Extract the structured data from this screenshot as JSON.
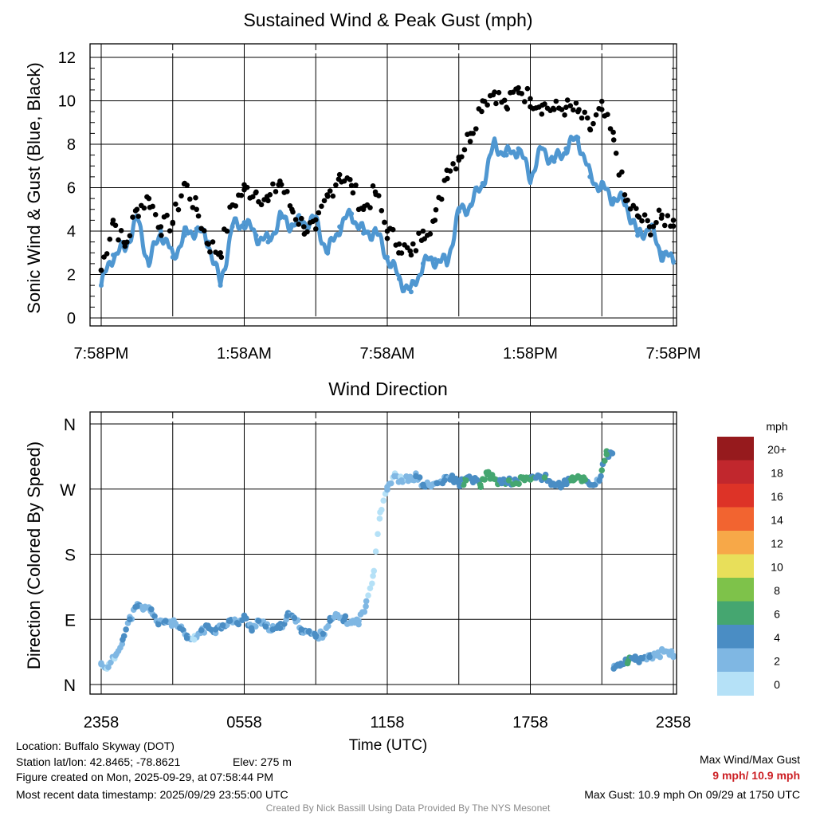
{
  "chart_data": [
    {
      "type": "scatter",
      "title": "Sustained Wind & Peak Gust (mph)",
      "ylabel": "Sonic Wind & Gust (Blue, Black)",
      "xlabel": "",
      "ylim": [
        0,
        12
      ],
      "yticks": [
        0,
        2,
        4,
        6,
        8,
        10,
        12
      ],
      "xticks": [
        "7:58PM",
        "1:58AM",
        "7:58AM",
        "1:58PM",
        "7:58PM"
      ],
      "x_unit": "hours since 7:58PM local",
      "xlim": [
        0,
        24
      ],
      "series": [
        {
          "name": "Sustained Wind",
          "color": "#4f97d1",
          "x": [
            0,
            0.5,
            1,
            1.5,
            2,
            2.5,
            3,
            3.5,
            4,
            4.5,
            5,
            5.5,
            6,
            6.5,
            7,
            7.5,
            8,
            8.5,
            9,
            9.5,
            10,
            10.5,
            11,
            11.5,
            12,
            12.5,
            13,
            13.5,
            14,
            14.5,
            15,
            15.5,
            16,
            16.5,
            17,
            17.5,
            18,
            18.5,
            19,
            19.5,
            20,
            20.5,
            21,
            21.5,
            22,
            22.5,
            23,
            23.5,
            24
          ],
          "values": [
            1.5,
            2.9,
            3.2,
            4.6,
            2.5,
            4.0,
            2.8,
            3.8,
            4.1,
            3.5,
            1.5,
            4.2,
            4.4,
            3.8,
            3.5,
            4.6,
            4.3,
            4.4,
            4.5,
            3.0,
            4.2,
            4.8,
            3.9,
            4.0,
            2.8,
            1.8,
            1.2,
            2.5,
            2.7,
            2.5,
            4.9,
            5.2,
            6.2,
            8.0,
            7.5,
            7.8,
            6.5,
            7.8,
            7.2,
            7.8,
            8.3,
            6.5,
            6.0,
            5.5,
            5.3,
            3.8,
            4.2,
            3.0,
            2.6
          ]
        },
        {
          "name": "Peak Gust",
          "color": "#000000",
          "x": [
            0,
            0.5,
            1,
            1.5,
            2,
            2.5,
            3,
            3.5,
            4,
            4.5,
            5,
            5.5,
            6,
            6.5,
            7,
            7.5,
            8,
            8.5,
            9,
            9.5,
            10,
            10.5,
            11,
            11.5,
            12,
            12.5,
            13,
            13.5,
            14,
            14.5,
            15,
            15.5,
            16,
            16.5,
            17,
            17.5,
            18,
            18.5,
            19,
            19.5,
            20,
            20.5,
            21,
            21.5,
            22,
            22.5,
            23,
            23.5,
            24
          ],
          "values": [
            2.2,
            4.5,
            3.3,
            5.0,
            5.5,
            4.2,
            4.4,
            6.2,
            5.0,
            3.4,
            3.0,
            5.2,
            5.9,
            5.8,
            5.4,
            6.3,
            5.0,
            4.2,
            4.1,
            5.6,
            6.6,
            6.1,
            5.0,
            5.8,
            4.0,
            3.4,
            2.9,
            4.0,
            4.5,
            6.8,
            7.4,
            8.5,
            10.0,
            10.4,
            9.7,
            10.6,
            10.1,
            9.8,
            9.6,
            9.7,
            9.5,
            8.7,
            9.6,
            8.2,
            5.4,
            4.7,
            4.2,
            4.6,
            4.5
          ]
        }
      ]
    },
    {
      "type": "scatter",
      "title": "Wind Direction",
      "ylabel": "Direction (Colored By Speed)",
      "xlabel": "Time (UTC)",
      "ylim": [
        0,
        360
      ],
      "yticks": [
        "N",
        "E",
        "S",
        "W",
        "N"
      ],
      "xticks": [
        "2358",
        "0558",
        "1158",
        "1758",
        "2358"
      ],
      "x_unit": "hours since 2358 UTC",
      "xlim": [
        0,
        24
      ],
      "points": {
        "x": [
          0,
          0.3,
          0.6,
          0.9,
          1.2,
          1.5,
          1.8,
          2.1,
          2.4,
          2.7,
          3.0,
          3.3,
          3.6,
          3.9,
          4.2,
          4.5,
          4.8,
          5.1,
          5.4,
          5.7,
          6.0,
          6.3,
          6.6,
          6.9,
          7.2,
          7.5,
          7.8,
          8.1,
          8.4,
          8.7,
          9.0,
          9.3,
          9.6,
          9.9,
          10.2,
          10.5,
          10.8,
          11.1,
          11.4,
          11.7,
          12.0,
          12.3,
          12.6,
          13.0,
          13.2,
          13.5,
          13.8,
          14.1,
          14.4,
          14.7,
          15.0,
          15.3,
          15.6,
          15.9,
          16.2,
          16.5,
          16.8,
          17.1,
          17.4,
          17.7,
          18.0,
          18.3,
          18.6,
          18.9,
          19.2,
          19.5,
          19.8,
          20.0,
          20.3,
          20.5,
          20.9,
          21.0,
          21.2,
          21.5,
          21.8,
          22.1,
          22.4,
          22.7,
          23.0,
          23.3,
          23.6,
          24.0
        ],
        "direction": [
          28,
          24,
          40,
          62,
          90,
          108,
          105,
          104,
          83,
          88,
          85,
          78,
          64,
          62,
          75,
          78,
          76,
          82,
          88,
          85,
          92,
          78,
          88,
          80,
          76,
          78,
          95,
          92,
          76,
          73,
          66,
          70,
          88,
          94,
          90,
          85,
          88,
          108,
          150,
          238,
          273,
          288,
          282,
          284,
          288,
          276,
          274,
          278,
          282,
          286,
          278,
          282,
          284,
          276,
          290,
          284,
          278,
          282,
          278,
          286,
          283,
          288,
          286,
          278,
          275,
          280,
          282,
          286,
          283,
          276,
          282,
          296,
          318,
          22,
          29,
          32,
          34,
          36,
          38,
          40,
          46,
          40
        ],
        "speed": [
          2,
          2,
          2,
          4,
          4,
          4,
          3,
          4,
          4,
          4,
          3,
          4,
          4,
          1,
          4,
          4,
          4,
          4,
          4,
          4,
          4,
          4,
          4,
          4,
          4,
          4,
          4,
          4,
          4,
          4,
          4,
          4,
          4,
          3,
          4,
          3,
          3,
          3,
          1,
          0,
          2,
          2,
          2,
          3,
          4,
          4,
          3,
          4,
          4,
          4,
          5,
          6,
          5,
          6,
          7,
          7,
          5,
          6,
          6,
          7,
          7,
          5,
          6,
          5,
          5,
          5,
          7,
          7,
          6,
          4,
          4,
          6,
          7,
          4,
          5,
          6,
          5,
          4,
          4,
          3,
          3,
          3
        ]
      },
      "colorbar": {
        "title": "mph",
        "labels": [
          "20+",
          "18",
          "16",
          "14",
          "12",
          "10",
          "8",
          "6",
          "4",
          "2",
          "0"
        ],
        "colors": [
          "#961a1d",
          "#c1272d",
          "#dd3327",
          "#f26430",
          "#f7a848",
          "#e8df5a",
          "#7ec24a",
          "#45a670",
          "#4a8dc4",
          "#7fb7e3",
          "#b5e1f7"
        ]
      }
    }
  ],
  "info": {
    "location": "Location: Buffalo Skyway (DOT)",
    "latlon": "Station lat/lon: 42.8465; -78.8621",
    "elev": "Elev: 275 m",
    "created": "Figure created on Mon, 2025-09-29, at 07:58:44 PM",
    "recent": "Most recent data timestamp: 2025/09/29 23:55:00 UTC",
    "maxwind_label": "Max Wind/Max Gust",
    "maxwind_value": "9 mph/ 10.9 mph",
    "maxgust_line": "Max Gust: 10.9 mph On 09/29 at 1750 UTC",
    "credit": "Created By Nick Bassill Using Data Provided By The NYS Mesonet"
  },
  "colors": {
    "highlight": "#cc1f24",
    "credit": "#8a8a8a"
  }
}
